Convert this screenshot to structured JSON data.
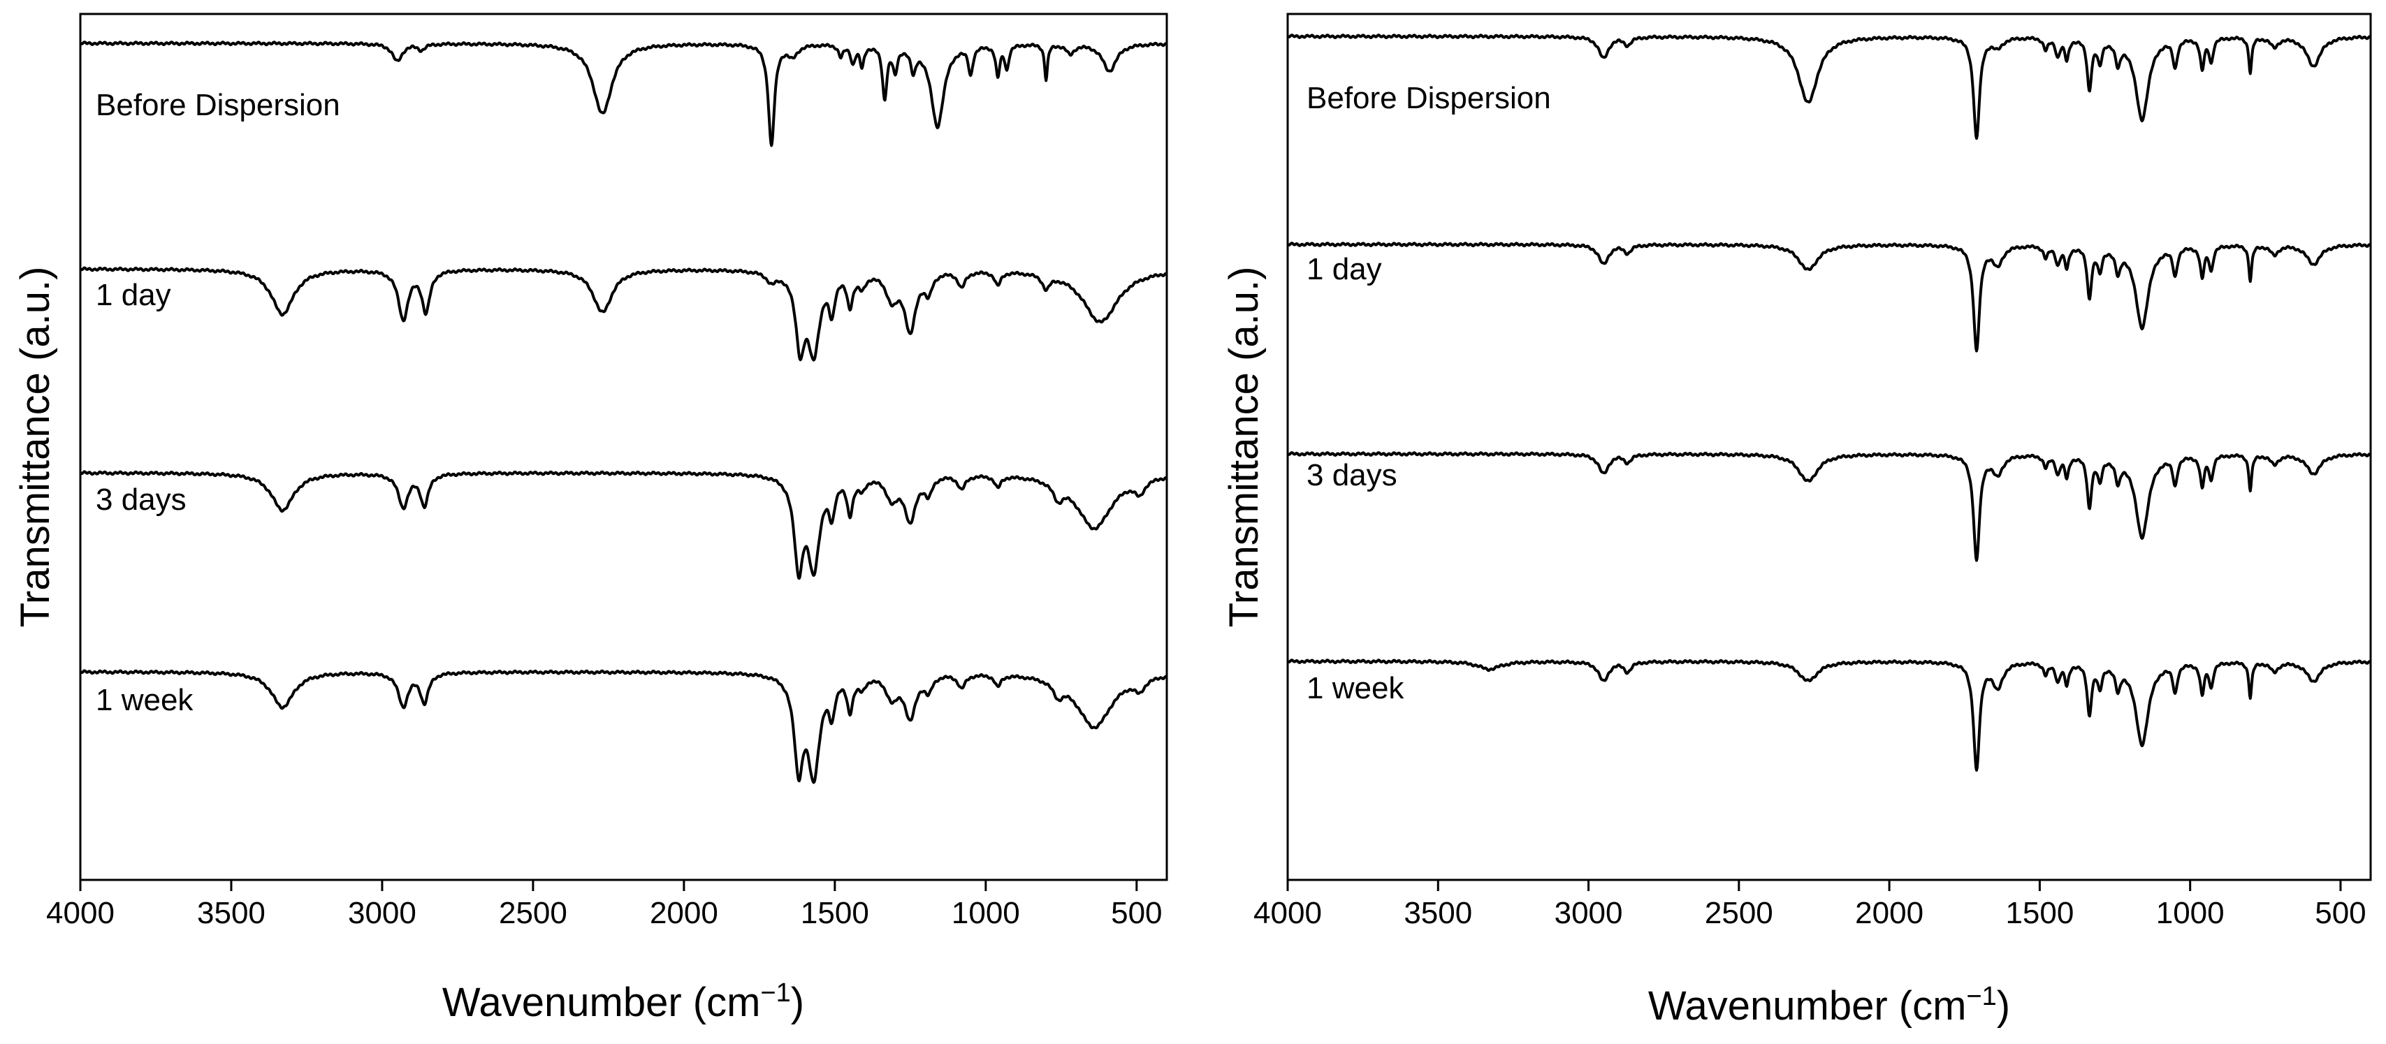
{
  "chart_data": [
    {
      "type": "line",
      "panel": "left",
      "xlabel": "Wavenumber (cm",
      "xlabel_superscript": "−1",
      "xlabel_close": ")",
      "ylabel": "Transmittance (a.u.)",
      "xlim": [
        4000,
        400
      ],
      "x_reversed": true,
      "xticks": [
        4000,
        3500,
        3000,
        2500,
        2000,
        1500,
        1000,
        500
      ],
      "y_ticks_shown": false,
      "series": [
        {
          "name": "Before Dispersion",
          "baseline": 0,
          "peaks": [
            [
              2950,
              0.09,
              20
            ],
            [
              2870,
              0.03,
              15
            ],
            [
              2270,
              0.36,
              38
            ],
            [
              1710,
              0.52,
              12
            ],
            [
              1640,
              0.06,
              20
            ],
            [
              1480,
              0.06,
              9
            ],
            [
              1440,
              0.09,
              9
            ],
            [
              1410,
              0.11,
              8
            ],
            [
              1335,
              0.27,
              9
            ],
            [
              1300,
              0.13,
              9
            ],
            [
              1240,
              0.12,
              10
            ],
            [
              1160,
              0.42,
              26
            ],
            [
              1050,
              0.14,
              9
            ],
            [
              960,
              0.16,
              8
            ],
            [
              930,
              0.12,
              8
            ],
            [
              800,
              0.18,
              6
            ],
            [
              720,
              0.05,
              15
            ],
            [
              590,
              0.14,
              28
            ]
          ]
        },
        {
          "name": "1 day",
          "baseline": 0,
          "peaks": [
            [
              3330,
              0.23,
              45
            ],
            [
              2930,
              0.25,
              20
            ],
            [
              2855,
              0.21,
              16
            ],
            [
              2270,
              0.22,
              38
            ],
            [
              1710,
              0.05,
              20
            ],
            [
              1615,
              0.36,
              18
            ],
            [
              1570,
              0.4,
              24
            ],
            [
              1510,
              0.18,
              12
            ],
            [
              1450,
              0.16,
              12
            ],
            [
              1410,
              0.07,
              15
            ],
            [
              1310,
              0.14,
              25
            ],
            [
              1250,
              0.3,
              22
            ],
            [
              1190,
              0.1,
              15
            ],
            [
              1080,
              0.08,
              15
            ],
            [
              960,
              0.07,
              12
            ],
            [
              800,
              0.07,
              15
            ],
            [
              620,
              0.27,
              70
            ]
          ]
        },
        {
          "name": "3 days",
          "baseline": 0,
          "peaks": [
            [
              3330,
              0.19,
              45
            ],
            [
              2930,
              0.17,
              20
            ],
            [
              2860,
              0.16,
              16
            ],
            [
              1620,
              0.44,
              18
            ],
            [
              1570,
              0.46,
              24
            ],
            [
              1510,
              0.17,
              12
            ],
            [
              1450,
              0.18,
              12
            ],
            [
              1410,
              0.06,
              15
            ],
            [
              1310,
              0.12,
              25
            ],
            [
              1250,
              0.23,
              22
            ],
            [
              1190,
              0.09,
              15
            ],
            [
              1080,
              0.07,
              15
            ],
            [
              960,
              0.06,
              12
            ],
            [
              760,
              0.08,
              20
            ],
            [
              640,
              0.28,
              70
            ],
            [
              490,
              0.07,
              20
            ]
          ]
        },
        {
          "name": "1 week",
          "baseline": 0,
          "peaks": [
            [
              3330,
              0.18,
              45
            ],
            [
              2930,
              0.17,
              20
            ],
            [
              2860,
              0.15,
              16
            ],
            [
              1620,
              0.45,
              18
            ],
            [
              1570,
              0.5,
              24
            ],
            [
              1510,
              0.17,
              12
            ],
            [
              1450,
              0.17,
              12
            ],
            [
              1410,
              0.06,
              15
            ],
            [
              1310,
              0.12,
              25
            ],
            [
              1250,
              0.22,
              22
            ],
            [
              1190,
              0.08,
              15
            ],
            [
              1080,
              0.07,
              15
            ],
            [
              960,
              0.06,
              12
            ],
            [
              760,
              0.07,
              20
            ],
            [
              640,
              0.28,
              70
            ],
            [
              490,
              0.06,
              20
            ]
          ]
        }
      ]
    },
    {
      "type": "line",
      "panel": "right",
      "xlabel": "Wavenumber (cm",
      "xlabel_superscript": "−1",
      "xlabel_close": ")",
      "ylabel": "Transmittance (a.u.)",
      "xlim": [
        4000,
        400
      ],
      "x_reversed": true,
      "xticks": [
        4000,
        3500,
        3000,
        2500,
        2000,
        1500,
        1000,
        500
      ],
      "y_ticks_shown": false,
      "series": [
        {
          "name": "Before Dispersion",
          "baseline": 0,
          "peaks": [
            [
              2950,
              0.11,
              20
            ],
            [
              2870,
              0.04,
              15
            ],
            [
              2270,
              0.34,
              38
            ],
            [
              1710,
              0.52,
              12
            ],
            [
              1640,
              0.05,
              20
            ],
            [
              1480,
              0.06,
              9
            ],
            [
              1440,
              0.09,
              9
            ],
            [
              1410,
              0.11,
              8
            ],
            [
              1335,
              0.26,
              9
            ],
            [
              1300,
              0.12,
              9
            ],
            [
              1240,
              0.12,
              10
            ],
            [
              1160,
              0.42,
              26
            ],
            [
              1050,
              0.14,
              9
            ],
            [
              960,
              0.16,
              8
            ],
            [
              930,
              0.12,
              8
            ],
            [
              800,
              0.18,
              6
            ],
            [
              720,
              0.05,
              15
            ],
            [
              590,
              0.15,
              28
            ]
          ]
        },
        {
          "name": "1 day",
          "baseline": 0,
          "peaks": [
            [
              2950,
              0.1,
              20
            ],
            [
              2870,
              0.04,
              15
            ],
            [
              2270,
              0.13,
              38
            ],
            [
              1710,
              0.54,
              12
            ],
            [
              1640,
              0.1,
              20
            ],
            [
              1480,
              0.06,
              9
            ],
            [
              1440,
              0.09,
              9
            ],
            [
              1410,
              0.11,
              8
            ],
            [
              1335,
              0.26,
              9
            ],
            [
              1300,
              0.12,
              9
            ],
            [
              1240,
              0.12,
              10
            ],
            [
              1160,
              0.42,
              26
            ],
            [
              1050,
              0.14,
              9
            ],
            [
              960,
              0.16,
              8
            ],
            [
              930,
              0.12,
              8
            ],
            [
              800,
              0.18,
              6
            ],
            [
              720,
              0.05,
              15
            ],
            [
              590,
              0.1,
              28
            ]
          ]
        },
        {
          "name": "3 days",
          "baseline": 0,
          "peaks": [
            [
              2950,
              0.1,
              20
            ],
            [
              2870,
              0.04,
              15
            ],
            [
              2270,
              0.14,
              38
            ],
            [
              1710,
              0.54,
              12
            ],
            [
              1640,
              0.1,
              20
            ],
            [
              1480,
              0.06,
              9
            ],
            [
              1440,
              0.09,
              9
            ],
            [
              1410,
              0.11,
              8
            ],
            [
              1335,
              0.26,
              9
            ],
            [
              1300,
              0.12,
              9
            ],
            [
              1240,
              0.12,
              10
            ],
            [
              1160,
              0.42,
              26
            ],
            [
              1050,
              0.14,
              9
            ],
            [
              960,
              0.16,
              8
            ],
            [
              930,
              0.12,
              8
            ],
            [
              800,
              0.18,
              6
            ],
            [
              720,
              0.05,
              15
            ],
            [
              590,
              0.1,
              28
            ]
          ]
        },
        {
          "name": "1 week",
          "baseline": 0,
          "peaks": [
            [
              3330,
              0.04,
              45
            ],
            [
              2950,
              0.1,
              20
            ],
            [
              2870,
              0.05,
              15
            ],
            [
              2270,
              0.1,
              38
            ],
            [
              1710,
              0.55,
              12
            ],
            [
              1640,
              0.13,
              20
            ],
            [
              1480,
              0.06,
              9
            ],
            [
              1440,
              0.09,
              9
            ],
            [
              1410,
              0.11,
              8
            ],
            [
              1335,
              0.26,
              9
            ],
            [
              1300,
              0.12,
              9
            ],
            [
              1240,
              0.12,
              10
            ],
            [
              1160,
              0.42,
              26
            ],
            [
              1050,
              0.14,
              9
            ],
            [
              960,
              0.16,
              8
            ],
            [
              930,
              0.12,
              8
            ],
            [
              800,
              0.18,
              6
            ],
            [
              720,
              0.05,
              15
            ],
            [
              590,
              0.1,
              28
            ]
          ]
        }
      ]
    }
  ]
}
